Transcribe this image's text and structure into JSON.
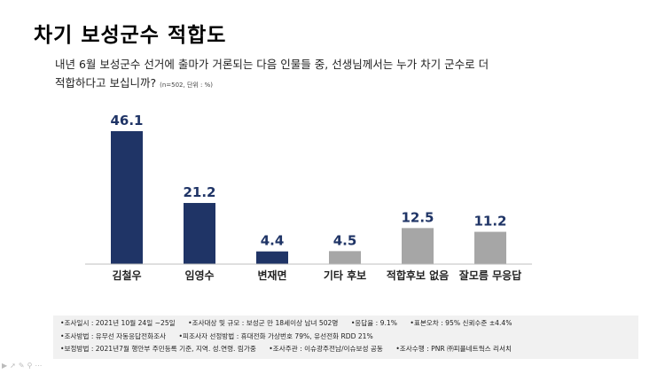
{
  "title": "차기 보성군수 적합도",
  "question": {
    "line1": "내년 6월 보성군수 선거에 출마가 거론되는 다음 인물들 중, 선생님께서는 누가 차기 군수로 더",
    "line2": "적합하다고 보십니까?",
    "note": "(n=502, 단위 : %)"
  },
  "chart_data": {
    "type": "bar",
    "categories": [
      "김철우",
      "임영수",
      "변재면",
      "기타 후보",
      "적합후보 없음",
      "잘모름 무응답"
    ],
    "values": [
      46.1,
      21.2,
      4.4,
      4.5,
      12.5,
      11.2
    ],
    "data_labels": [
      "46.1",
      "21.2",
      "4.4",
      "4.5",
      "12.5",
      "11.2"
    ],
    "colors": [
      "#1f3466",
      "#1f3466",
      "#1f3466",
      "#a6a6a6",
      "#a6a6a6",
      "#a6a6a6"
    ],
    "ylim": [
      0,
      50
    ],
    "grid": false,
    "legend": "none"
  },
  "footer": {
    "row1": [
      "•조사일시 : 2021년 10월 24일 ~25일",
      "•조사대상 및 규모 : 보성군 만 18세이상  남녀  502명",
      "•응답율 :  9.1%",
      "•표본오차 : 95% 신뢰수준 ±4.4%"
    ],
    "row2": [
      "•조사방법 : 유무선 자동응답전화조사",
      "•피조사자 선정방법 : 휴대전화 가상번호 79%, 유선전화 RDD  21%"
    ],
    "row3": [
      "•보정방법 : 2021년7월  행안부 주민등록 기준,  지역. 성.연령. 림가중",
      "•조사주관 : 이슈광주전남/이슈보성 공동",
      "•조사수행 : PNR ㈜피플네트웍스 리서치"
    ]
  },
  "colors": {
    "primary_bar": "#1f3466",
    "secondary_bar": "#a6a6a6",
    "footer_bg": "#f1f1f1"
  },
  "icons": [
    "play-icon",
    "pointer-icon",
    "pen-icon",
    "zoom-icon",
    "menu-icon"
  ]
}
